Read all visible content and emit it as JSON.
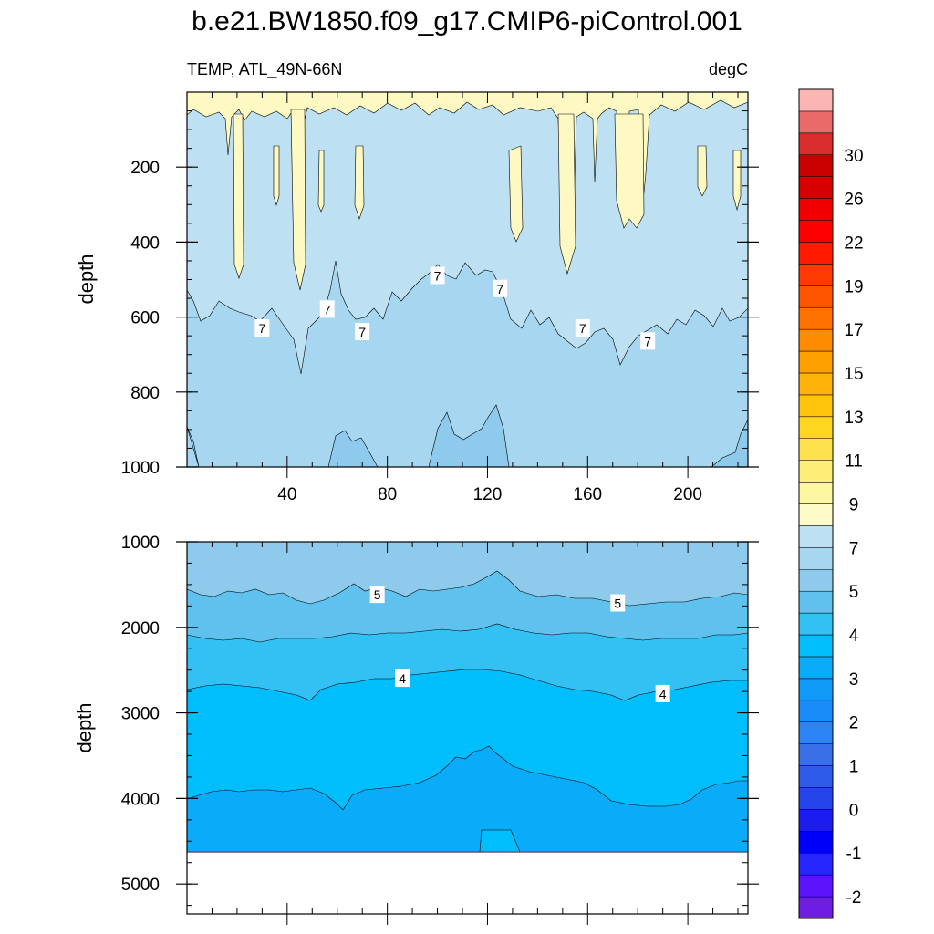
{
  "title": "b.e21.BW1850.f09_g17.CMIP6-piControl.001",
  "chart_data": {
    "type": "heatmap",
    "variable": "TEMP, ATL_49N-66N",
    "units": "degC",
    "x": {
      "ticks": [
        40,
        80,
        120,
        160,
        200
      ],
      "range": [
        0,
        224
      ]
    },
    "panels": [
      {
        "name": "upper",
        "ylabel": "depth",
        "yticks": [
          200,
          400,
          600,
          800,
          1000
        ],
        "ylim": [
          1000,
          0
        ],
        "layers": [
          {
            "upper_bound_c": 7.5,
            "depth_range": [
              0,
              50
            ],
            "color": "#fef9c2"
          },
          {
            "upper_bound_c": 7.0,
            "depth_range": [
              50,
              600
            ],
            "color": "#bde0f3"
          },
          {
            "upper_bound_c": 6.5,
            "depth_range": [
              600,
              950
            ],
            "color": "#a6d6f0"
          },
          {
            "upper_bound_c": 6.0,
            "depth_range": [
              950,
              1000
            ],
            "color": "#8dcaec"
          }
        ],
        "contour_labels": [
          {
            "text": "7",
            "x": 30,
            "depth": 630
          },
          {
            "text": "7",
            "x": 56,
            "depth": 580
          },
          {
            "text": "7",
            "x": 70,
            "depth": 640
          },
          {
            "text": "7",
            "x": 100,
            "depth": 490
          },
          {
            "text": "7",
            "x": 125,
            "depth": 525
          },
          {
            "text": "7",
            "x": 158,
            "depth": 630
          },
          {
            "text": "7",
            "x": 184,
            "depth": 665
          }
        ]
      },
      {
        "name": "lower",
        "ylabel": "depth",
        "yticks": [
          1000,
          2000,
          3000,
          4000,
          5000
        ],
        "ylim": [
          5350,
          1000
        ],
        "bottom_depth": 4620,
        "layers": [
          {
            "upper_bound_c": 6.0,
            "depth_range": [
              1000,
              1650
            ],
            "color": "#8dcaec"
          },
          {
            "upper_bound_c": 5.0,
            "depth_range": [
              1650,
              2150
            ],
            "color": "#5fc2ee"
          },
          {
            "upper_bound_c": 4.5,
            "depth_range": [
              2150,
              2750
            ],
            "color": "#33c0f3"
          },
          {
            "upper_bound_c": 4.0,
            "depth_range": [
              2750,
              4000
            ],
            "color": "#00bdfb"
          },
          {
            "upper_bound_c": 3.5,
            "depth_range": [
              4000,
              4620
            ],
            "color": "#0aabf8"
          }
        ],
        "contour_labels": [
          {
            "text": "5",
            "x": 76,
            "depth": 1620
          },
          {
            "text": "5",
            "x": 172,
            "depth": 1720
          },
          {
            "text": "4",
            "x": 86,
            "depth": 2600
          },
          {
            "text": "4",
            "x": 190,
            "depth": 2780
          }
        ]
      }
    ],
    "colorbar": {
      "levels": [
        "-2",
        "-1",
        "0",
        "1",
        "2",
        "3",
        "4",
        "5",
        "7",
        "9",
        "11",
        "13",
        "15",
        "17",
        "19",
        "22",
        "26",
        "30"
      ],
      "colors": [
        "#6e1ee4",
        "#5c14fa",
        "#2626ff",
        "#0000f8",
        "#1c1cf0",
        "#2545eb",
        "#2f5bea",
        "#3870e8",
        "#2b85f5",
        "#198cf9",
        "#119bf8",
        "#0aabf8",
        "#00bdfb",
        "#33c0f3",
        "#5fc2ee",
        "#8dcaec",
        "#a6d6f0",
        "#bde0f3",
        "#fefbc8",
        "#fef7a2",
        "#fdee76",
        "#fde24e",
        "#ffd51f",
        "#ffc40c",
        "#ffb308",
        "#ffa000",
        "#ff8c00",
        "#ff7200",
        "#ff5500",
        "#ff3a00",
        "#ff1a00",
        "#ff0000",
        "#f10000",
        "#d70000",
        "#c90000",
        "#da2e2e",
        "#ea6a6a",
        "#fdb4b4"
      ]
    }
  }
}
